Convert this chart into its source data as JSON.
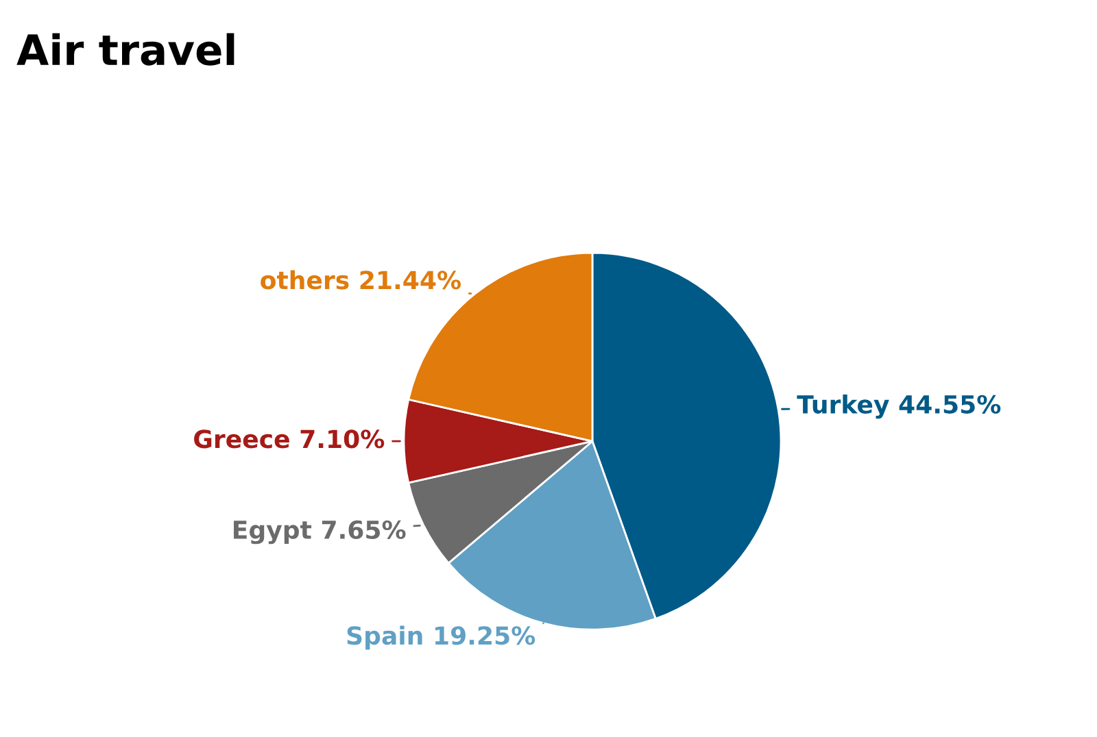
{
  "chart_data": {
    "type": "pie",
    "title": "Air travel",
    "categories": [
      "Turkey",
      "Spain",
      "Egypt",
      "Greece",
      "others"
    ],
    "values": [
      44.55,
      19.25,
      7.65,
      7.1,
      21.44
    ],
    "value_labels": [
      "44.55%",
      "19.25%",
      "7.65%",
      "7.10%",
      "21.44%"
    ],
    "colors": [
      "#005a87",
      "#60a0c4",
      "#6b6b6b",
      "#a61a17",
      "#e07b0c"
    ],
    "legend": false
  }
}
